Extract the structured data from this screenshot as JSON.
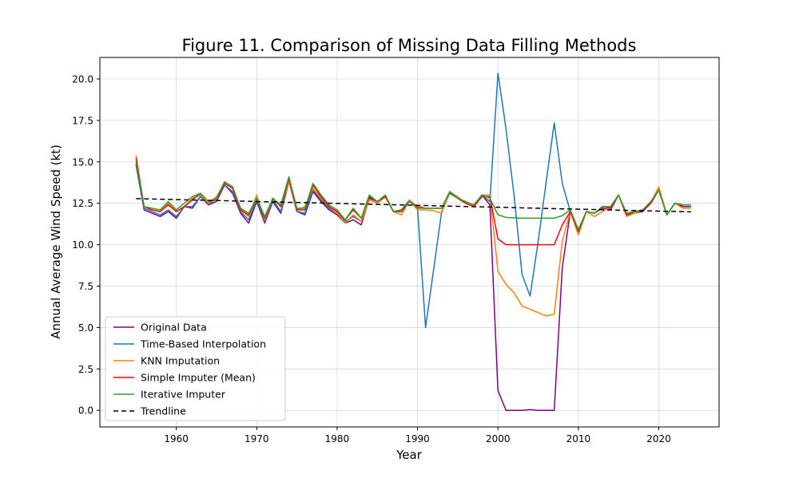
{
  "chart_data": {
    "type": "line",
    "title": "Figure 11. Comparison of Missing Data Filling Methods",
    "xlabel": "Year",
    "ylabel": "Annual Average Wind Speed (kt)",
    "xlim": [
      1950.5,
      2027.5
    ],
    "ylim": [
      -1.0,
      21.3
    ],
    "xticks": [
      1960,
      1970,
      1980,
      1990,
      2000,
      2010,
      2020
    ],
    "yticks": [
      0.0,
      2.5,
      5.0,
      7.5,
      10.0,
      12.5,
      15.0,
      17.5,
      20.0
    ],
    "ytick_labels": [
      "0.0",
      "2.5",
      "5.0",
      "7.5",
      "10.0",
      "12.5",
      "15.0",
      "17.5",
      "20.0"
    ],
    "grid": true,
    "legend_position": "lower-left",
    "x": [
      1955,
      1956,
      1957,
      1958,
      1959,
      1960,
      1961,
      1962,
      1963,
      1964,
      1965,
      1966,
      1967,
      1968,
      1969,
      1970,
      1971,
      1972,
      1973,
      1974,
      1975,
      1976,
      1977,
      1978,
      1979,
      1980,
      1981,
      1982,
      1983,
      1984,
      1985,
      1986,
      1987,
      1988,
      1989,
      1990,
      1991,
      1992,
      1993,
      1994,
      1995,
      1996,
      1997,
      1998,
      1999,
      2000,
      2001,
      2002,
      2003,
      2004,
      2005,
      2006,
      2007,
      2008,
      2009,
      2010,
      2011,
      2012,
      2013,
      2014,
      2015,
      2016,
      2017,
      2018,
      2019,
      2020,
      2021,
      2022,
      2023,
      2024
    ],
    "series": [
      {
        "name": "Original Data",
        "color": "#800080",
        "dash": "",
        "values": [
          14.8,
          12.1,
          11.9,
          11.7,
          12.0,
          11.6,
          12.3,
          12.2,
          12.9,
          12.4,
          12.6,
          13.6,
          13.1,
          11.9,
          11.3,
          12.6,
          11.3,
          12.6,
          11.9,
          13.8,
          12.0,
          11.8,
          13.2,
          12.6,
          12.1,
          11.8,
          11.3,
          11.5,
          11.2,
          12.8,
          12.6,
          12.9,
          12.0,
          12.1,
          12.6,
          12.3,
          null,
          null,
          null,
          13.1,
          12.8,
          12.5,
          12.3,
          13.0,
          12.4,
          1.2,
          0.0,
          0.0,
          0.0,
          0.05,
          0.0,
          0.0,
          0.0,
          8.6,
          12.0,
          10.9,
          12.0,
          11.9,
          12.2,
          12.1,
          13.0,
          11.8,
          11.9,
          12.0,
          12.5,
          13.3,
          11.8,
          12.5,
          12.3,
          12.3
        ]
      },
      {
        "name": "Time-Based Interpolation",
        "color": "#1f77b4",
        "dash": "",
        "values": [
          14.9,
          12.2,
          12.0,
          11.8,
          12.1,
          11.7,
          12.3,
          12.3,
          12.9,
          12.5,
          12.6,
          13.6,
          13.2,
          12.0,
          11.5,
          12.7,
          11.4,
          12.7,
          12.0,
          13.9,
          12.0,
          11.9,
          13.3,
          12.7,
          12.2,
          11.9,
          11.4,
          11.7,
          11.4,
          12.9,
          12.6,
          12.9,
          12.0,
          12.1,
          12.7,
          12.2,
          5.0,
          8.5,
          12.0,
          13.1,
          12.8,
          12.5,
          12.3,
          13.0,
          12.6,
          20.35,
          17.0,
          13.0,
          8.2,
          6.9,
          10.2,
          13.8,
          17.35,
          13.7,
          12.0,
          10.9,
          12.0,
          11.9,
          12.3,
          12.2,
          13.0,
          11.8,
          11.9,
          12.1,
          12.5,
          13.3,
          11.8,
          12.5,
          12.4,
          12.4
        ]
      },
      {
        "name": "KNN Imputation",
        "color": "#ff7f0e",
        "dash": "",
        "values": [
          15.4,
          12.3,
          12.1,
          12.0,
          12.5,
          12.0,
          12.3,
          12.8,
          13.0,
          12.5,
          12.9,
          13.7,
          13.4,
          12.1,
          11.7,
          13.0,
          11.5,
          12.8,
          12.3,
          13.8,
          12.1,
          12.3,
          13.4,
          12.8,
          12.3,
          11.9,
          11.3,
          11.8,
          11.4,
          12.7,
          12.5,
          12.9,
          12.0,
          11.8,
          12.7,
          12.1,
          12.1,
          12.05,
          11.9,
          13.2,
          12.9,
          12.5,
          12.3,
          13.0,
          13.0,
          8.4,
          7.6,
          7.1,
          6.3,
          6.1,
          5.9,
          5.7,
          5.8,
          10.2,
          12.0,
          10.6,
          12.0,
          11.7,
          12.0,
          12.3,
          13.0,
          11.7,
          11.9,
          12.1,
          12.5,
          13.5,
          11.8,
          12.5,
          12.2,
          12.2
        ]
      },
      {
        "name": "Simple Imputer (Mean)",
        "color": "#ff0000",
        "dash": "",
        "values": [
          15.2,
          12.3,
          12.1,
          12.0,
          12.4,
          12.0,
          12.3,
          12.7,
          13.1,
          12.6,
          12.7,
          13.7,
          13.4,
          12.1,
          11.8,
          12.8,
          11.6,
          12.8,
          12.3,
          14.0,
          12.1,
          12.1,
          13.6,
          12.9,
          12.3,
          12.0,
          11.5,
          12.1,
          11.6,
          12.9,
          12.6,
          12.9,
          12.0,
          12.0,
          12.6,
          12.3,
          12.2,
          12.2,
          12.2,
          13.2,
          12.8,
          12.5,
          12.3,
          12.9,
          12.9,
          10.35,
          10.0,
          10.0,
          10.0,
          10.0,
          10.0,
          10.0,
          10.0,
          11.2,
          12.0,
          10.8,
          12.0,
          11.9,
          12.3,
          12.2,
          13.0,
          11.8,
          12.0,
          12.1,
          12.5,
          13.3,
          11.8,
          12.5,
          12.4,
          12.4
        ]
      },
      {
        "name": "Iterative Imputer",
        "color": "#2ca02c",
        "dash": "",
        "values": [
          15.0,
          12.3,
          12.2,
          12.1,
          12.6,
          12.1,
          12.5,
          12.9,
          13.1,
          12.6,
          12.8,
          13.8,
          13.5,
          12.2,
          11.9,
          12.8,
          11.7,
          12.8,
          12.4,
          14.1,
          12.2,
          12.2,
          13.7,
          13.0,
          12.4,
          12.1,
          11.5,
          12.2,
          11.6,
          13.0,
          12.6,
          13.0,
          12.0,
          12.1,
          12.6,
          12.2,
          12.2,
          12.2,
          12.2,
          13.2,
          12.8,
          12.6,
          12.4,
          13.0,
          12.8,
          11.8,
          11.65,
          11.62,
          11.6,
          11.6,
          11.6,
          11.6,
          11.6,
          11.75,
          12.1,
          10.9,
          12.0,
          11.9,
          12.3,
          12.3,
          13.0,
          11.9,
          12.0,
          12.1,
          12.6,
          13.3,
          11.8,
          12.5,
          12.4,
          12.4
        ]
      },
      {
        "name": "Trendline",
        "color": "#000000",
        "dash": "6,4",
        "linear": [
          [
            1955,
            12.78
          ],
          [
            2024,
            11.98
          ]
        ]
      }
    ]
  }
}
